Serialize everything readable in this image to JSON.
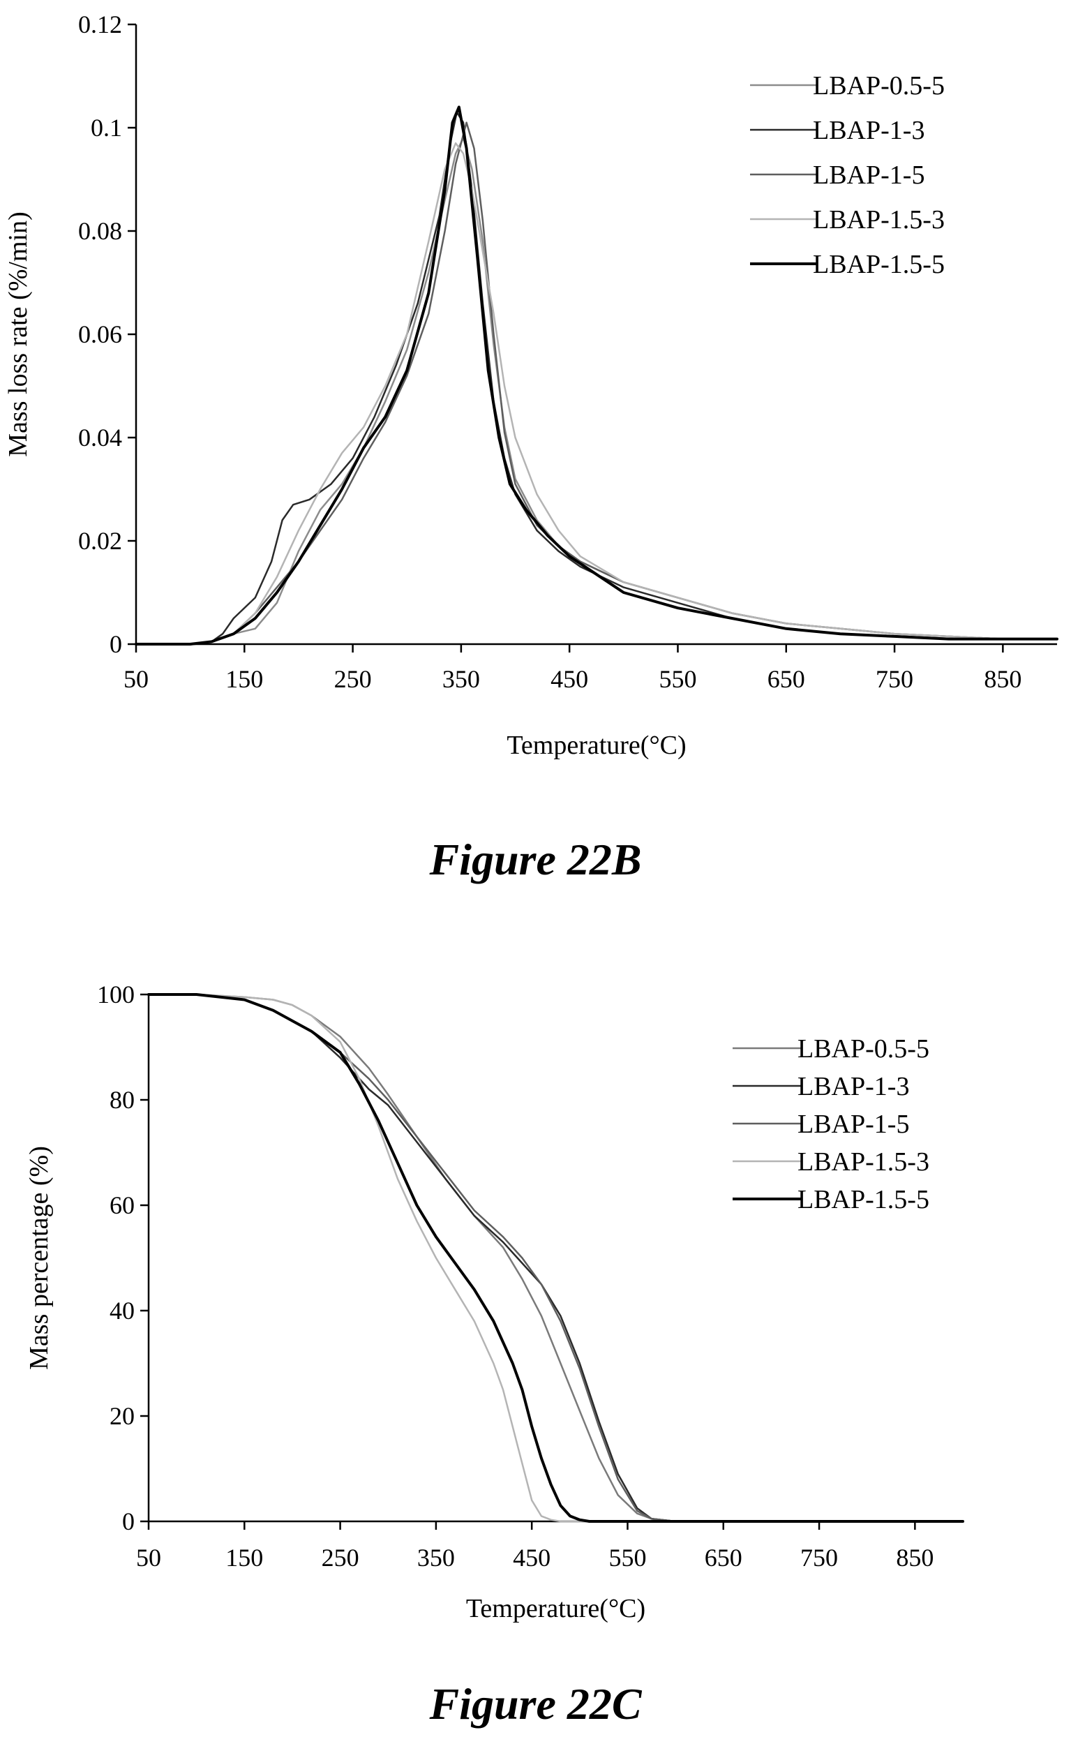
{
  "captions": [
    "Figure 22B",
    "Figure 22C"
  ],
  "chart_data": [
    {
      "type": "line",
      "xlabel": "Temperature(°C)",
      "ylabel": "Mass loss rate (%/min)",
      "xlim": [
        50,
        900
      ],
      "ylim": [
        0,
        0.12
      ],
      "xticks": [
        "50",
        "150",
        "250",
        "350",
        "450",
        "550",
        "650",
        "750",
        "850"
      ],
      "yticks": [
        "0",
        "0.02",
        "0.04",
        "0.06",
        "0.08",
        "0.1",
        "0.12"
      ],
      "legend_position": "top-right",
      "grid": false,
      "series": [
        {
          "name": "LBAP-0.5-5",
          "color": "#8c8c8c",
          "width": 2.5,
          "x": [
            50,
            100,
            120,
            140,
            160,
            180,
            200,
            220,
            240,
            260,
            280,
            300,
            320,
            335,
            345,
            352,
            360,
            370,
            380,
            390,
            400,
            420,
            440,
            460,
            500,
            550,
            600,
            650,
            700,
            750,
            800,
            850,
            900
          ],
          "y": [
            0,
            0,
            0.0005,
            0.002,
            0.003,
            0.008,
            0.018,
            0.026,
            0.031,
            0.038,
            0.047,
            0.057,
            0.072,
            0.086,
            0.095,
            0.098,
            0.092,
            0.078,
            0.058,
            0.042,
            0.032,
            0.024,
            0.019,
            0.016,
            0.012,
            0.009,
            0.006,
            0.004,
            0.003,
            0.002,
            0.0015,
            0.001,
            0.001
          ]
        },
        {
          "name": "LBAP-1-3",
          "color": "#2a2a2a",
          "width": 2.5,
          "x": [
            50,
            100,
            120,
            130,
            140,
            160,
            175,
            185,
            195,
            210,
            230,
            250,
            270,
            290,
            310,
            330,
            340,
            346,
            352,
            360,
            370,
            380,
            390,
            400,
            420,
            440,
            460,
            500,
            550,
            600,
            650,
            700,
            750,
            800,
            850,
            900
          ],
          "y": [
            0,
            0,
            0.0005,
            0.002,
            0.005,
            0.009,
            0.016,
            0.024,
            0.027,
            0.028,
            0.031,
            0.036,
            0.044,
            0.054,
            0.066,
            0.083,
            0.097,
            0.103,
            0.101,
            0.088,
            0.066,
            0.047,
            0.036,
            0.029,
            0.022,
            0.018,
            0.015,
            0.011,
            0.008,
            0.005,
            0.003,
            0.002,
            0.0015,
            0.001,
            0.001,
            0.001
          ]
        },
        {
          "name": "LBAP-1-5",
          "color": "#5e5e5e",
          "width": 2.5,
          "x": [
            50,
            100,
            120,
            140,
            160,
            180,
            200,
            220,
            240,
            260,
            280,
            300,
            320,
            335,
            345,
            355,
            362,
            370,
            380,
            390,
            400,
            420,
            440,
            460,
            500,
            550,
            600,
            650,
            700,
            750,
            800,
            850,
            900
          ],
          "y": [
            0,
            0,
            0.0005,
            0.002,
            0.006,
            0.011,
            0.016,
            0.022,
            0.028,
            0.036,
            0.043,
            0.052,
            0.064,
            0.08,
            0.093,
            0.101,
            0.096,
            0.082,
            0.06,
            0.041,
            0.031,
            0.023,
            0.019,
            0.016,
            0.012,
            0.009,
            0.006,
            0.004,
            0.003,
            0.002,
            0.0015,
            0.001,
            0.001
          ]
        },
        {
          "name": "LBAP-1.5-3",
          "color": "#b4b4b4",
          "width": 2.5,
          "x": [
            50,
            100,
            120,
            140,
            160,
            180,
            200,
            220,
            240,
            260,
            280,
            300,
            320,
            335,
            345,
            352,
            360,
            370,
            380,
            390,
            400,
            420,
            440,
            460,
            500,
            550,
            600,
            650,
            700,
            750,
            800,
            850,
            900
          ],
          "y": [
            0,
            0,
            0.0005,
            0.002,
            0.006,
            0.013,
            0.022,
            0.03,
            0.037,
            0.042,
            0.05,
            0.06,
            0.078,
            0.092,
            0.097,
            0.095,
            0.088,
            0.076,
            0.064,
            0.05,
            0.04,
            0.029,
            0.022,
            0.017,
            0.012,
            0.009,
            0.006,
            0.004,
            0.003,
            0.002,
            0.0015,
            0.001,
            0.001
          ]
        },
        {
          "name": "LBAP-1.5-5",
          "color": "#000000",
          "width": 4,
          "x": [
            50,
            100,
            120,
            140,
            160,
            180,
            200,
            220,
            240,
            260,
            280,
            300,
            320,
            335,
            342,
            348,
            355,
            365,
            375,
            385,
            395,
            410,
            430,
            450,
            500,
            550,
            600,
            650,
            700,
            750,
            800,
            850,
            900
          ],
          "y": [
            0,
            0,
            0.0005,
            0.002,
            0.005,
            0.01,
            0.016,
            0.023,
            0.03,
            0.038,
            0.044,
            0.053,
            0.068,
            0.088,
            0.101,
            0.104,
            0.096,
            0.075,
            0.053,
            0.04,
            0.031,
            0.026,
            0.021,
            0.017,
            0.01,
            0.007,
            0.005,
            0.003,
            0.002,
            0.0015,
            0.001,
            0.001,
            0.001
          ]
        }
      ]
    },
    {
      "type": "line",
      "xlabel": "Temperature(°C)",
      "ylabel": "Mass percentage (%)",
      "xlim": [
        50,
        900
      ],
      "ylim": [
        0,
        100
      ],
      "xticks": [
        "50",
        "150",
        "250",
        "350",
        "450",
        "550",
        "650",
        "750",
        "850"
      ],
      "yticks": [
        "0",
        "20",
        "40",
        "60",
        "80",
        "100"
      ],
      "legend_position": "top-right",
      "grid": false,
      "series": [
        {
          "name": "LBAP-0.5-5",
          "color": "#7a7a7a",
          "width": 2.5,
          "x": [
            50,
            100,
            150,
            180,
            200,
            220,
            250,
            280,
            300,
            330,
            360,
            390,
            420,
            440,
            460,
            480,
            500,
            520,
            540,
            560,
            575,
            600,
            700,
            800,
            900
          ],
          "y": [
            100,
            100,
            99.5,
            99,
            98,
            96,
            92,
            86,
            81,
            73,
            65,
            58,
            52,
            46,
            39,
            30,
            21,
            12,
            5,
            1.5,
            0.5,
            0,
            0,
            0,
            0
          ]
        },
        {
          "name": "LBAP-1-3",
          "color": "#2a2a2a",
          "width": 2.5,
          "x": [
            50,
            100,
            150,
            180,
            200,
            220,
            250,
            280,
            300,
            330,
            360,
            390,
            420,
            440,
            460,
            480,
            500,
            520,
            540,
            560,
            575,
            600,
            700,
            800,
            900
          ],
          "y": [
            100,
            100,
            99,
            97,
            95,
            93,
            88,
            82,
            79,
            72,
            65,
            58,
            53,
            49,
            45,
            39,
            30,
            19,
            9,
            2.5,
            0.5,
            0,
            0,
            0,
            0
          ]
        },
        {
          "name": "LBAP-1-5",
          "color": "#5e5e5e",
          "width": 2.5,
          "x": [
            50,
            100,
            150,
            180,
            200,
            220,
            250,
            280,
            300,
            330,
            360,
            390,
            420,
            440,
            460,
            480,
            500,
            520,
            540,
            560,
            575,
            600,
            700,
            800,
            900
          ],
          "y": [
            100,
            100,
            99,
            97,
            95,
            93,
            89,
            84,
            80,
            73,
            66,
            59,
            54,
            50,
            45,
            38,
            29,
            18,
            8,
            2,
            0.5,
            0,
            0,
            0,
            0
          ]
        },
        {
          "name": "LBAP-1.5-3",
          "color": "#b4b4b4",
          "width": 2.5,
          "x": [
            50,
            100,
            150,
            180,
            200,
            220,
            250,
            270,
            290,
            310,
            330,
            350,
            370,
            390,
            410,
            420,
            430,
            440,
            450,
            460,
            470,
            480,
            500,
            600,
            700,
            800,
            900
          ],
          "y": [
            100,
            100,
            99.5,
            99,
            98,
            96,
            91,
            84,
            75,
            65,
            57,
            50,
            44,
            38,
            30,
            25,
            18,
            11,
            4,
            1,
            0.3,
            0,
            0,
            0,
            0,
            0,
            0
          ]
        },
        {
          "name": "LBAP-1.5-5",
          "color": "#000000",
          "width": 4,
          "x": [
            50,
            100,
            150,
            180,
            200,
            220,
            250,
            270,
            290,
            310,
            330,
            350,
            370,
            390,
            410,
            430,
            440,
            450,
            460,
            470,
            480,
            490,
            500,
            510,
            600,
            700,
            800,
            900
          ],
          "y": [
            100,
            100,
            99,
            97,
            95,
            93,
            89,
            83,
            76,
            68,
            60,
            54,
            49,
            44,
            38,
            30,
            25,
            18,
            12,
            7,
            3,
            1,
            0.3,
            0,
            0,
            0,
            0,
            0
          ]
        }
      ]
    }
  ]
}
